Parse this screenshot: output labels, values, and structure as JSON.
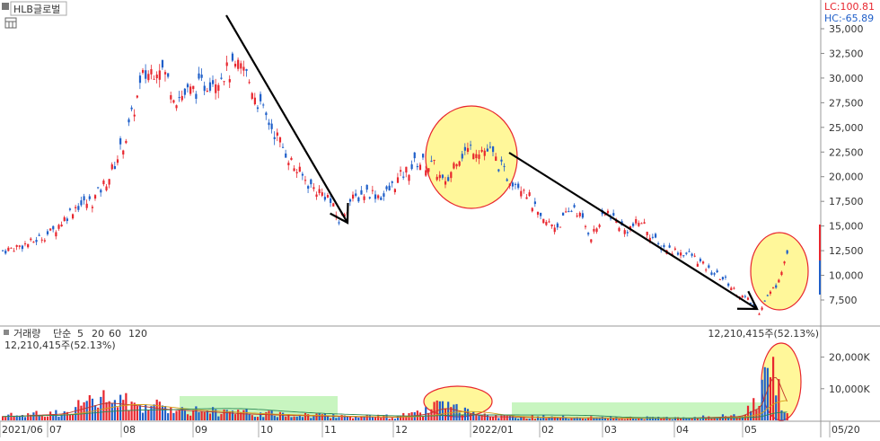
{
  "window": {
    "stock_name": "HLB글로벌",
    "lc_label": "LC:100.81",
    "hc_label": "HC:-65.89"
  },
  "volume_panel": {
    "legend": [
      "거래량",
      "단순",
      "5",
      "20",
      "60",
      "120"
    ],
    "legend_colors": [
      "#1a6ec6",
      "#7a2aa8",
      "#c0392b",
      "#d4a017",
      "#2e8b57",
      "#888888"
    ],
    "value_left": "12,210,415주(52.13%)",
    "value_right": "12,210,415주(52.13%)"
  },
  "colors": {
    "up": "#e8262e",
    "down": "#1f5fc9",
    "highlight_fill": "#fff79a",
    "highlight_stroke": "#e8262e",
    "band": "#c8f5c0"
  },
  "chart_data": {
    "type": "candlestick",
    "x_labels": [
      "2021/06",
      "07",
      "08",
      "09",
      "10",
      "11",
      "12",
      "2022/01",
      "02",
      "03",
      "04",
      "05",
      "05/20"
    ],
    "price_axis_ticks": [
      35000,
      32500,
      30000,
      27500,
      25000,
      22500,
      20000,
      17500,
      15000,
      12500,
      10000,
      7500
    ],
    "price_axis_labels": [
      "35,000",
      "32,500",
      "30,000",
      "27,500",
      "25,000",
      "22,500",
      "20,000",
      "17,500",
      "15,000",
      "12,500",
      "10,000",
      "7,500"
    ],
    "volume_axis_labels": [
      "20,000K",
      "10,000K"
    ],
    "price_trend": [
      [
        0,
        12500
      ],
      [
        10,
        13300
      ],
      [
        18,
        14500
      ],
      [
        26,
        17000
      ],
      [
        32,
        17500
      ],
      [
        38,
        20000
      ],
      [
        44,
        24000
      ],
      [
        50,
        30000
      ],
      [
        56,
        31500
      ],
      [
        62,
        28000
      ],
      [
        70,
        29000
      ],
      [
        78,
        30500
      ],
      [
        86,
        31000
      ],
      [
        92,
        27000
      ],
      [
        98,
        24000
      ],
      [
        104,
        21000
      ],
      [
        110,
        19000
      ],
      [
        116,
        18000
      ],
      [
        120,
        15500
      ],
      [
        124,
        17500
      ],
      [
        130,
        18500
      ],
      [
        136,
        18000
      ],
      [
        142,
        20000
      ],
      [
        148,
        21500
      ],
      [
        154,
        21000
      ],
      [
        158,
        19000
      ],
      [
        162,
        22000
      ],
      [
        168,
        23000
      ],
      [
        174,
        22500
      ],
      [
        180,
        20000
      ],
      [
        186,
        19000
      ],
      [
        192,
        15500
      ],
      [
        198,
        15000
      ],
      [
        204,
        17000
      ],
      [
        210,
        14000
      ],
      [
        216,
        16500
      ],
      [
        222,
        14500
      ],
      [
        228,
        15500
      ],
      [
        234,
        13000
      ],
      [
        240,
        12500
      ],
      [
        246,
        12000
      ],
      [
        252,
        10500
      ],
      [
        258,
        9500
      ],
      [
        262,
        8200
      ],
      [
        266,
        7500
      ],
      [
        270,
        6300
      ],
      [
        272,
        7500
      ],
      [
        276,
        9000
      ],
      [
        280,
        12200
      ]
    ],
    "volume_trend": [
      [
        0,
        1500
      ],
      [
        20,
        2500
      ],
      [
        35,
        7000
      ],
      [
        45,
        6000
      ],
      [
        55,
        4500
      ],
      [
        70,
        3500
      ],
      [
        85,
        2500
      ],
      [
        100,
        2000
      ],
      [
        120,
        1500
      ],
      [
        140,
        1200
      ],
      [
        150,
        2500
      ],
      [
        156,
        5000
      ],
      [
        162,
        3500
      ],
      [
        170,
        1500
      ],
      [
        200,
        1000
      ],
      [
        240,
        800
      ],
      [
        262,
        1500
      ],
      [
        270,
        6000
      ],
      [
        273,
        22000
      ],
      [
        276,
        12000
      ],
      [
        280,
        3000
      ]
    ],
    "annotations": {
      "trend_arrows": [
        {
          "from": [
            "2021-09-15",
            35500
          ],
          "to": [
            "2021-11-08",
            15200
          ]
        },
        {
          "from": [
            "2022-01-20",
            22800
          ],
          "to": [
            "2022-05-06",
            7000
          ]
        }
      ],
      "highlight_circles": [
        "2021-12-20 to 2022-01-20",
        "2022-05-06 to 2022-05-20"
      ]
    }
  }
}
